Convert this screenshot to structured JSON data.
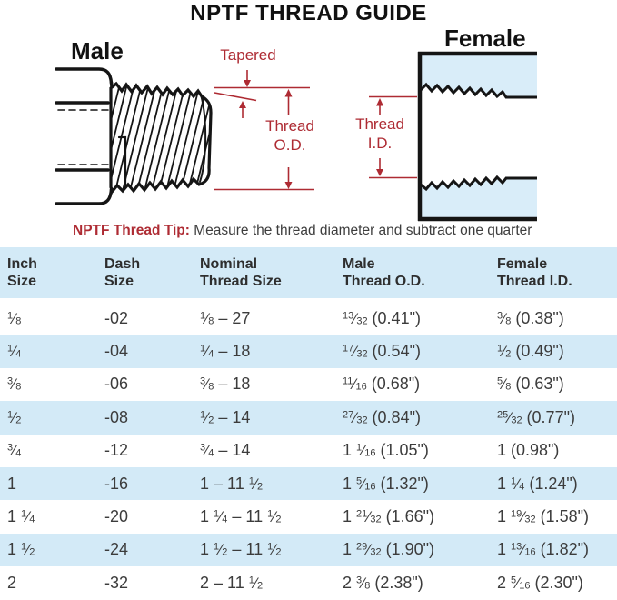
{
  "title": "NPTF THREAD GUIDE",
  "diagram": {
    "male_label": "Male",
    "female_label": "Female",
    "tapered_label": "Tapered",
    "male_dimension_label": "Thread\nO.D.",
    "female_dimension_label": "Thread\nI.D.",
    "accent_red": "#ae2b33",
    "fill_blue": "#d9edf9",
    "line_black": "#151515"
  },
  "tip": {
    "label": "NPTF Thread Tip:",
    "text": "Measure the thread diameter and subtract one quarter"
  },
  "table": {
    "band_blue": "#d3eaf7",
    "columns": [
      "Inch\nSize",
      "Dash\nSize",
      "Nominal\nThread Size",
      "Male\nThread O.D.",
      "Female\nThread I.D."
    ],
    "rows": [
      [
        "1/8",
        "-02",
        "1/8 – 27",
        "13/32 (0.41\")",
        "3/8 (0.38\")"
      ],
      [
        "1/4",
        "-04",
        "1/4 – 18",
        "17/32 (0.54\")",
        "1/2 (0.49\")"
      ],
      [
        "3/8",
        "-06",
        "3/8 – 18",
        "11/16 (0.68\")",
        "5/8 (0.63\")"
      ],
      [
        "1/2",
        "-08",
        "1/2 – 14",
        "27/32 (0.84\")",
        "25/32 (0.77\")"
      ],
      [
        "3/4",
        "-12",
        "3/4 – 14",
        "1 1/16 (1.05\")",
        "1 (0.98\")"
      ],
      [
        "1",
        "-16",
        "1 – 11 1/2",
        "1 5/16 (1.32\")",
        "1 1/4 (1.24\")"
      ],
      [
        "1 1/4",
        "-20",
        "1 1/4 – 11 1/2",
        "1 21/32 (1.66\")",
        "1 19/32 (1.58\")"
      ],
      [
        "1 1/2",
        "-24",
        "1 1/2 – 11 1/2",
        "1 29/32 (1.90\")",
        "1 13/16 (1.82\")"
      ],
      [
        "2",
        "-32",
        "2 – 11 1/2",
        "2 3/8 (2.38\")",
        "2 5/16 (2.30\")"
      ]
    ]
  }
}
